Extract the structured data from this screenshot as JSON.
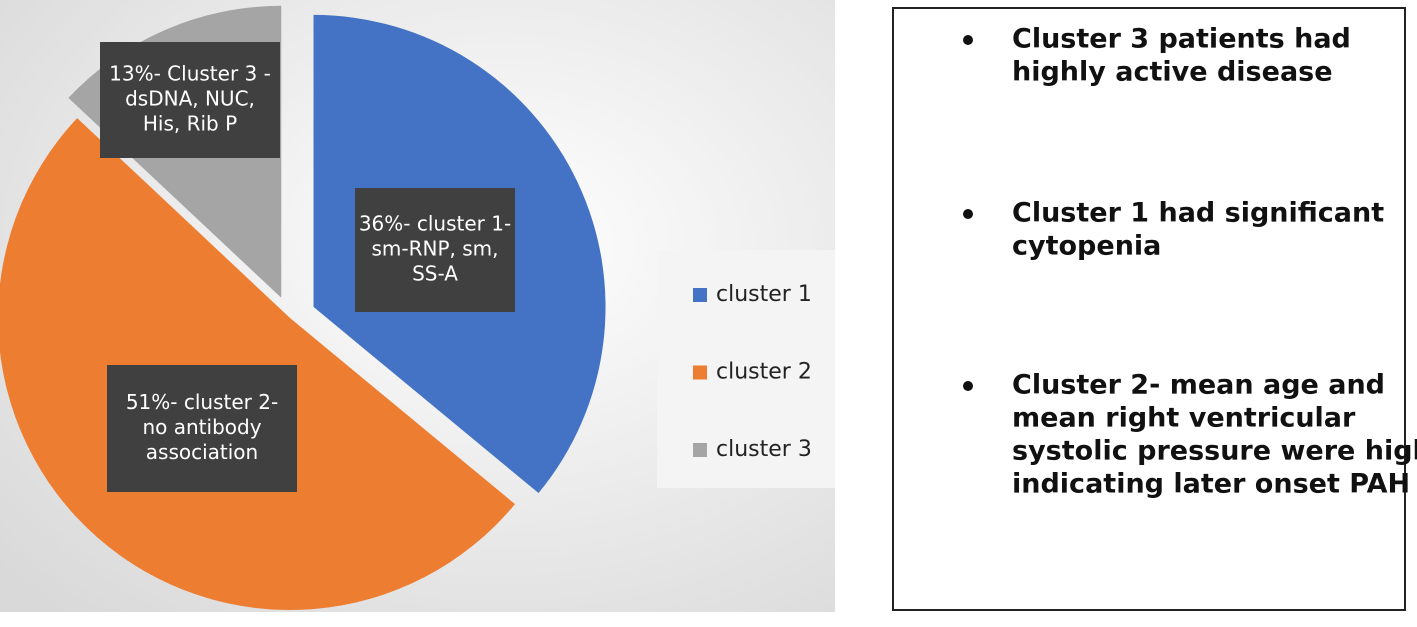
{
  "chart_data": {
    "type": "pie",
    "categories": [
      "cluster 1",
      "cluster 2",
      "cluster 3"
    ],
    "values": [
      36,
      51,
      13
    ],
    "value_labels": [
      [
        "36%- cluster 1-",
        "sm-RNP, sm,",
        "SS-A"
      ],
      [
        "51%- cluster 2-",
        "no antibody",
        "association"
      ],
      [
        "13%- Cluster 3 -",
        "dsDNA, NUC,",
        "His, Rib P"
      ]
    ],
    "colors": [
      "#4472c4",
      "#ed7d31",
      "#a5a5a5"
    ],
    "legend": "right"
  },
  "notes": [
    [
      "Cluster 3 patients had",
      "highly active disease"
    ],
    [
      "Cluster 1 had significant",
      "cytopenia"
    ],
    [
      "Cluster 2- mean age and",
      "mean right ventricular",
      "systolic pressure were high",
      "indicating later onset PAH"
    ]
  ]
}
